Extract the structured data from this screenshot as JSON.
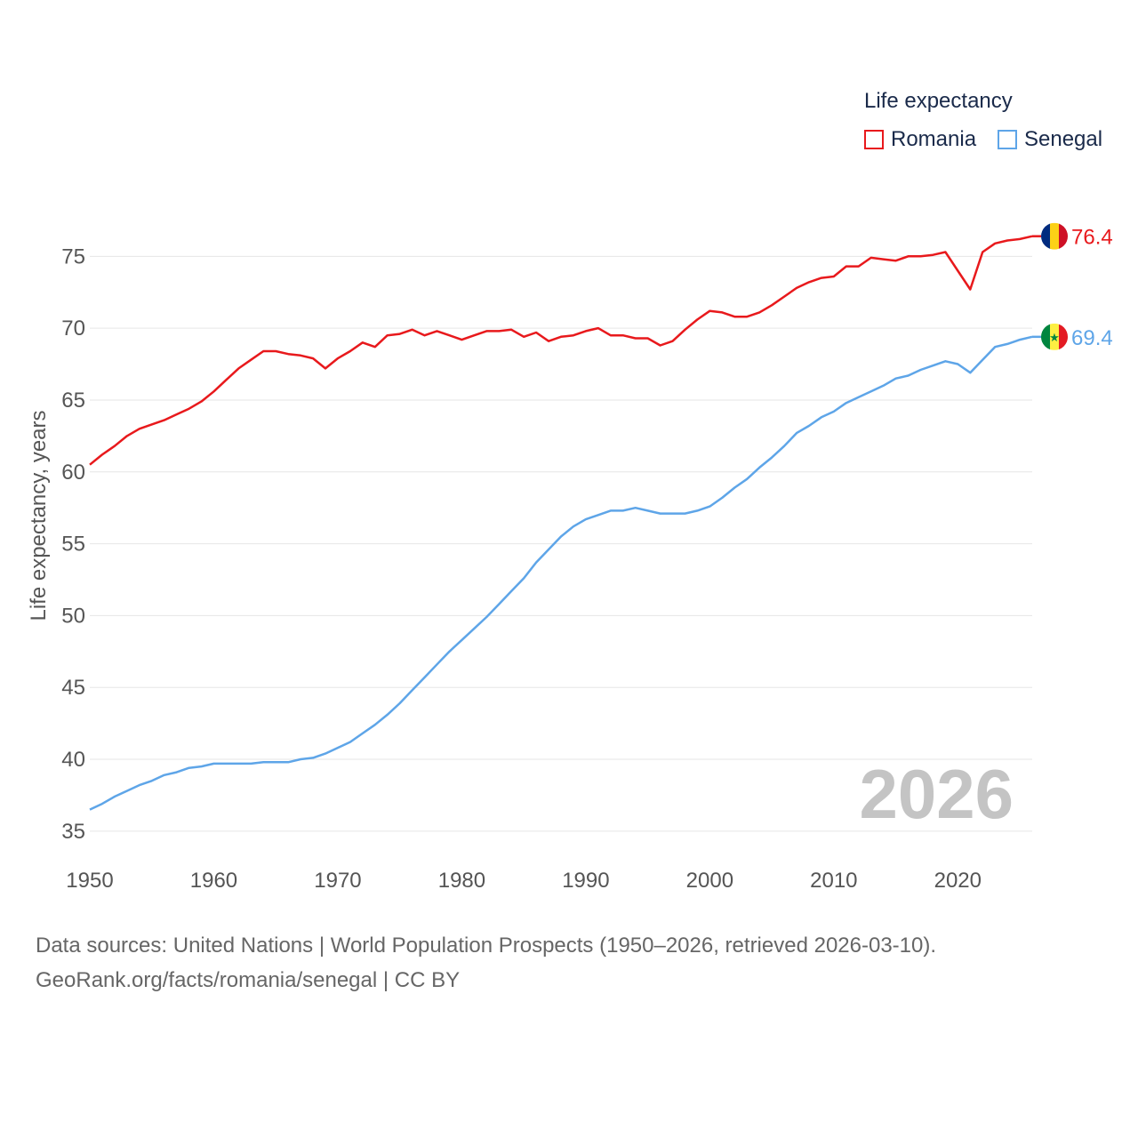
{
  "chart_data": {
    "type": "line",
    "title": "",
    "ylabel": "Life expectancy, years",
    "xlabel": "",
    "xlim": [
      1950,
      2026
    ],
    "ylim": [
      34,
      77
    ],
    "x_ticks": [
      1950,
      1960,
      1970,
      1980,
      1990,
      2000,
      2010,
      2020
    ],
    "y_ticks": [
      35,
      40,
      45,
      50,
      55,
      60,
      65,
      70,
      75
    ],
    "legend_title": "Life expectancy",
    "legend_position": "top-right",
    "year_label": "2026",
    "series": [
      {
        "name": "Romania",
        "color": "#e8191c",
        "end_label": "76.4",
        "flag": "romania-flag",
        "x": [
          1950,
          1951,
          1952,
          1953,
          1954,
          1955,
          1956,
          1957,
          1958,
          1959,
          1960,
          1961,
          1962,
          1963,
          1964,
          1965,
          1966,
          1967,
          1968,
          1969,
          1970,
          1971,
          1972,
          1973,
          1974,
          1975,
          1976,
          1977,
          1978,
          1979,
          1980,
          1981,
          1982,
          1983,
          1984,
          1985,
          1986,
          1987,
          1988,
          1989,
          1990,
          1991,
          1992,
          1993,
          1994,
          1995,
          1996,
          1997,
          1998,
          1999,
          2000,
          2001,
          2002,
          2003,
          2004,
          2005,
          2006,
          2007,
          2008,
          2009,
          2010,
          2011,
          2012,
          2013,
          2014,
          2015,
          2016,
          2017,
          2018,
          2019,
          2020,
          2021,
          2022,
          2023,
          2024,
          2025,
          2026
        ],
        "values": [
          60.5,
          61.2,
          61.8,
          62.5,
          63.0,
          63.3,
          63.6,
          64.0,
          64.4,
          64.9,
          65.6,
          66.4,
          67.2,
          67.8,
          68.4,
          68.4,
          68.2,
          68.1,
          67.9,
          67.2,
          67.9,
          68.4,
          69.0,
          68.7,
          69.5,
          69.6,
          69.9,
          69.5,
          69.8,
          69.5,
          69.2,
          69.5,
          69.8,
          69.8,
          69.9,
          69.4,
          69.7,
          69.1,
          69.4,
          69.5,
          69.8,
          70.0,
          69.5,
          69.5,
          69.3,
          69.3,
          68.8,
          69.1,
          69.9,
          70.6,
          71.2,
          71.1,
          70.8,
          70.8,
          71.1,
          71.6,
          72.2,
          72.8,
          73.2,
          73.5,
          73.6,
          74.3,
          74.3,
          74.9,
          74.8,
          74.7,
          75.0,
          75.0,
          75.1,
          75.3,
          74.0,
          72.7,
          75.3,
          75.9,
          76.1,
          76.2,
          76.4
        ]
      },
      {
        "name": "Senegal",
        "color": "#5ea5e8",
        "end_label": "69.4",
        "flag": "senegal-flag",
        "x": [
          1950,
          1951,
          1952,
          1953,
          1954,
          1955,
          1956,
          1957,
          1958,
          1959,
          1960,
          1961,
          1962,
          1963,
          1964,
          1965,
          1966,
          1967,
          1968,
          1969,
          1970,
          1971,
          1972,
          1973,
          1974,
          1975,
          1976,
          1977,
          1978,
          1979,
          1980,
          1981,
          1982,
          1983,
          1984,
          1985,
          1986,
          1987,
          1988,
          1989,
          1990,
          1991,
          1992,
          1993,
          1994,
          1995,
          1996,
          1997,
          1998,
          1999,
          2000,
          2001,
          2002,
          2003,
          2004,
          2005,
          2006,
          2007,
          2008,
          2009,
          2010,
          2011,
          2012,
          2013,
          2014,
          2015,
          2016,
          2017,
          2018,
          2019,
          2020,
          2021,
          2022,
          2023,
          2024,
          2025,
          2026
        ],
        "values": [
          36.5,
          36.9,
          37.4,
          37.8,
          38.2,
          38.5,
          38.9,
          39.1,
          39.4,
          39.5,
          39.7,
          39.7,
          39.7,
          39.7,
          39.8,
          39.8,
          39.8,
          40.0,
          40.1,
          40.4,
          40.8,
          41.2,
          41.8,
          42.4,
          43.1,
          43.9,
          44.8,
          45.7,
          46.6,
          47.5,
          48.3,
          49.1,
          49.9,
          50.8,
          51.7,
          52.6,
          53.7,
          54.6,
          55.5,
          56.2,
          56.7,
          57.0,
          57.3,
          57.3,
          57.5,
          57.3,
          57.1,
          57.1,
          57.1,
          57.3,
          57.6,
          58.2,
          58.9,
          59.5,
          60.3,
          61.0,
          61.8,
          62.7,
          63.2,
          63.8,
          64.2,
          64.8,
          65.2,
          65.6,
          66.0,
          66.5,
          66.7,
          67.1,
          67.4,
          67.7,
          67.5,
          66.9,
          67.8,
          68.7,
          68.9,
          69.2,
          69.4
        ]
      }
    ]
  },
  "sources": {
    "line1": "Data sources: United Nations | World Population Prospects (1950–2026, retrieved 2026-03-10).",
    "line2": "GeoRank.org/facts/romania/senegal | CC BY"
  }
}
